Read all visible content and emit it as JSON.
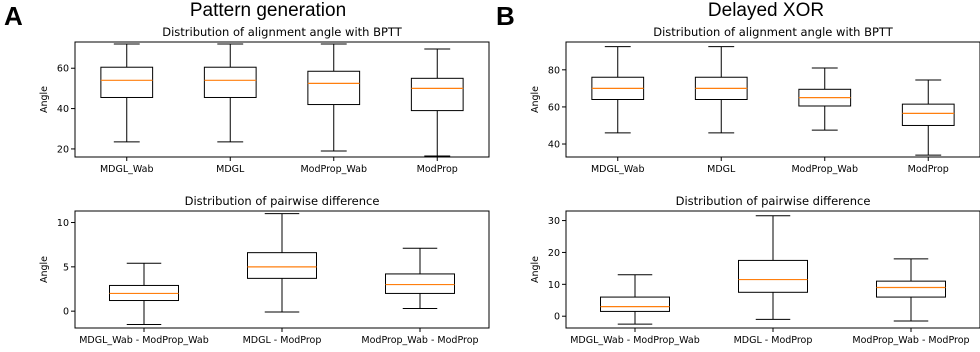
{
  "panels": [
    {
      "letter": "A",
      "title": "Pattern generation"
    },
    {
      "letter": "B",
      "title": "Delayed XOR"
    }
  ],
  "chart_data": [
    {
      "type": "box",
      "panel": "A",
      "title": "Distribution of alignment angle with BPTT",
      "xlabel": "",
      "ylabel": "Angle",
      "ylim": [
        16,
        73
      ],
      "yticks": [
        20,
        40,
        60
      ],
      "grid": false,
      "categories": [
        "MDGL_Wab",
        "MDGL",
        "ModProp_Wab",
        "ModProp"
      ],
      "boxes": [
        {
          "whisker_low": 23.5,
          "q1": 45.5,
          "median": 54,
          "q3": 60.5,
          "whisker_high": 72
        },
        {
          "whisker_low": 23.5,
          "q1": 45.5,
          "median": 54,
          "q3": 60.5,
          "whisker_high": 72
        },
        {
          "whisker_low": 19,
          "q1": 42,
          "median": 52.5,
          "q3": 58.5,
          "whisker_high": 72
        },
        {
          "whisker_low": 16.5,
          "q1": 39,
          "median": 50,
          "q3": 55,
          "whisker_high": 69.5
        }
      ]
    },
    {
      "type": "box",
      "panel": "A",
      "title": "Distribution of pairwise difference",
      "xlabel": "",
      "ylabel": "Angle",
      "ylim": [
        -1.9,
        11.3
      ],
      "yticks": [
        0,
        5,
        10
      ],
      "grid": false,
      "categories": [
        "MDGL_Wab - ModProp_Wab",
        "MDGL - ModProp",
        "ModProp_Wab - ModProp"
      ],
      "boxes": [
        {
          "whisker_low": -1.5,
          "q1": 1.2,
          "median": 2,
          "q3": 2.9,
          "whisker_high": 5.4
        },
        {
          "whisker_low": -0.1,
          "q1": 3.7,
          "median": 5,
          "q3": 6.6,
          "whisker_high": 11
        },
        {
          "whisker_low": 0.3,
          "q1": 2,
          "median": 3,
          "q3": 4.2,
          "whisker_high": 7.1
        }
      ]
    },
    {
      "type": "box",
      "panel": "B",
      "title": "Distribution of alignment angle with BPTT",
      "xlabel": "",
      "ylabel": "Angle",
      "ylim": [
        33,
        95
      ],
      "yticks": [
        40,
        60,
        80
      ],
      "grid": false,
      "categories": [
        "MDGL_Wab",
        "MDGL",
        "ModProp_Wab",
        "ModProp"
      ],
      "boxes": [
        {
          "whisker_low": 46,
          "q1": 64,
          "median": 70,
          "q3": 76,
          "whisker_high": 92.5
        },
        {
          "whisker_low": 46,
          "q1": 64,
          "median": 70,
          "q3": 76,
          "whisker_high": 92.5
        },
        {
          "whisker_low": 47.5,
          "q1": 60.5,
          "median": 65,
          "q3": 69.5,
          "whisker_high": 81
        },
        {
          "whisker_low": 34,
          "q1": 50,
          "median": 56.5,
          "q3": 61.5,
          "whisker_high": 74.5
        }
      ]
    },
    {
      "type": "box",
      "panel": "B",
      "title": "Distribution of pairwise difference",
      "xlabel": "",
      "ylabel": "Angle",
      "ylim": [
        -3.7,
        33
      ],
      "yticks": [
        0,
        10,
        20,
        30
      ],
      "grid": false,
      "categories": [
        "MDGL_Wab - ModProp_Wab",
        "MDGL - ModProp",
        "ModProp_Wab - ModProp"
      ],
      "boxes": [
        {
          "whisker_low": -2.5,
          "q1": 1.5,
          "median": 3,
          "q3": 6,
          "whisker_high": 13
        },
        {
          "whisker_low": -1,
          "q1": 7.5,
          "median": 11.5,
          "q3": 17.5,
          "whisker_high": 31.5
        },
        {
          "whisker_low": -1.5,
          "q1": 6,
          "median": 9,
          "q3": 11,
          "whisker_high": 18
        }
      ]
    }
  ],
  "colors": {
    "median": "#ff7f0e",
    "box": "#000000",
    "axes": "#000000",
    "background": "#ffffff"
  }
}
